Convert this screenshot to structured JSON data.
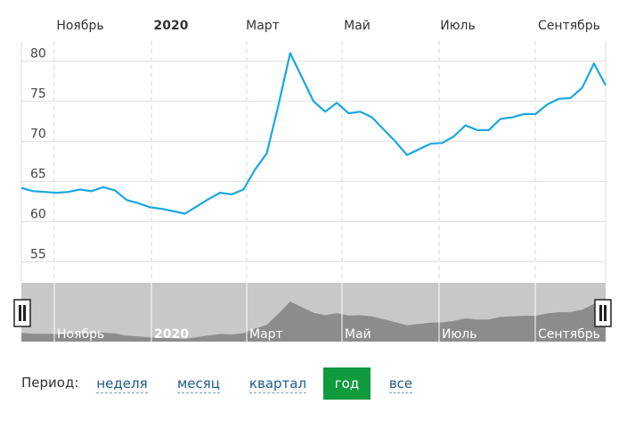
{
  "chart_data": {
    "type": "line",
    "top_axis_labels": [
      "Ноябрь",
      "2020",
      "Март",
      "Май",
      "Июль",
      "Сентябрь"
    ],
    "navigator_labels": [
      "Ноябрь",
      "2020",
      "Март",
      "Май",
      "Июль",
      "Сентябрь"
    ],
    "y_ticks": [
      "80",
      "75",
      "70",
      "65",
      "60",
      "55"
    ],
    "ylim": [
      52.5,
      82.5
    ],
    "grid": true,
    "series": [
      {
        "color": "#1aa7e0",
        "x": [
          0,
          2,
          4,
          6,
          8,
          10,
          12,
          14,
          16,
          18,
          20,
          22,
          24,
          26,
          28,
          30,
          32,
          34,
          36,
          38,
          40,
          42,
          44,
          46,
          48,
          50,
          52,
          54,
          56,
          58,
          60,
          62,
          64,
          66,
          68,
          70,
          72,
          74,
          76,
          78,
          80,
          82,
          84,
          86,
          88,
          90,
          92,
          94,
          96,
          98,
          100
        ],
        "y": [
          64.2,
          63.8,
          63.7,
          63.6,
          63.7,
          64.0,
          63.8,
          64.3,
          63.9,
          62.7,
          62.3,
          61.8,
          61.6,
          61.3,
          61.0,
          61.9,
          62.8,
          63.6,
          63.4,
          64.0,
          66.5,
          68.5,
          74.5,
          81.0,
          78.0,
          75.0,
          73.7,
          74.8,
          73.5,
          73.7,
          73.0,
          71.5,
          70.0,
          68.3,
          69.0,
          69.7,
          69.8,
          70.6,
          72.0,
          71.4,
          71.4,
          72.8,
          73.0,
          73.4,
          73.4,
          74.6,
          75.3,
          75.4,
          76.7,
          79.7,
          77.0
        ]
      }
    ]
  },
  "period": {
    "label": "Период:",
    "buttons": [
      {
        "label": "неделя",
        "active": false
      },
      {
        "label": "месяц",
        "active": false
      },
      {
        "label": "квартал",
        "active": false
      },
      {
        "label": "год",
        "active": true
      },
      {
        "label": "все",
        "active": false
      }
    ]
  },
  "colors": {
    "line": "#1aa7e0",
    "navigator_bg": "#c8c8c8",
    "navigator_area": "#8c8c8c",
    "active_button": "#0f9a3e",
    "button_text": "#1f5a8a"
  }
}
